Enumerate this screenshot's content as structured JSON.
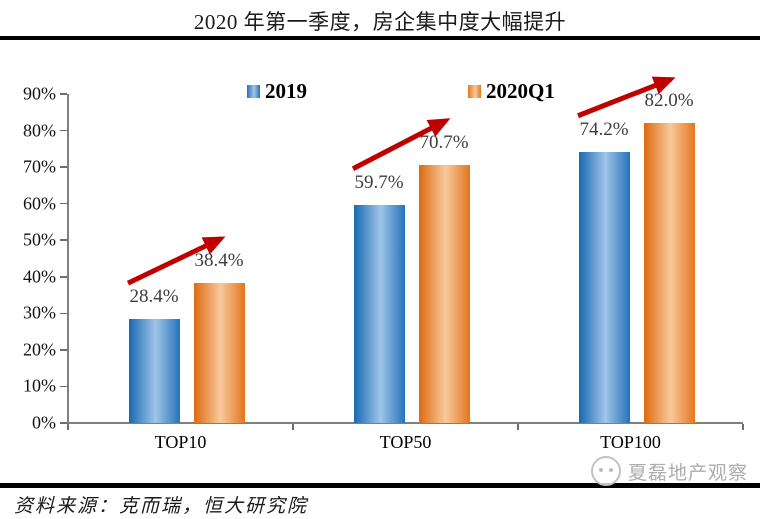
{
  "page": {
    "title": "2020 年第一季度，房企集中度大幅提升",
    "source": "资料来源：克而瑞，恒大研究院",
    "watermark": "夏磊地产观察"
  },
  "chart_data": {
    "type": "bar",
    "title": "2020 年第一季度，房企集中度大幅提升",
    "categories": [
      "TOP10",
      "TOP50",
      "TOP100"
    ],
    "series": [
      {
        "name": "2019",
        "values": [
          28.4,
          59.7,
          74.2
        ],
        "labels": [
          "28.4%",
          "59.7%",
          "74.2%"
        ],
        "color": "#2473b9",
        "color_light": "#9fc5e8"
      },
      {
        "name": "2020Q1",
        "values": [
          38.4,
          70.7,
          82.0
        ],
        "labels": [
          "38.4%",
          "70.7%",
          "82.0%"
        ],
        "color": "#e4761c",
        "color_light": "#f7c99d"
      }
    ],
    "ylim": [
      0,
      90
    ],
    "ytick_step": 10,
    "ytick_labels": [
      "0%",
      "10%",
      "20%",
      "30%",
      "40%",
      "50%",
      "60%",
      "70%",
      "80%",
      "90%"
    ],
    "grid": false,
    "legend_position": "top",
    "annotations": "dark-red upward trend arrow over each category pair",
    "arrow_color": "#c00000",
    "axis_color": "#7f7f7f",
    "value_label_color": "#3d3d3d",
    "source": "资料来源：克而瑞，恒大研究院",
    "watermark": "夏磊地产观察"
  }
}
